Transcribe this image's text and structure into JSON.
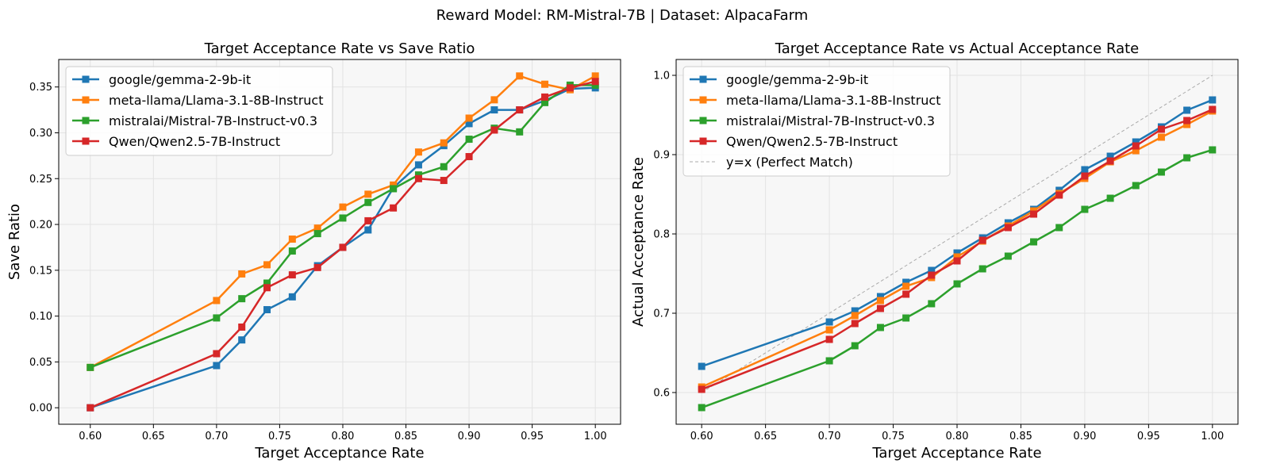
{
  "suptitle": "Reward Model: RM-Mistral-7B | Dataset: AlpacaFarm",
  "colors": {
    "google": "#1f77b4",
    "llama": "#ff7f0e",
    "mistral": "#2ca02c",
    "qwen": "#d62728",
    "diag": "#aaaaaa",
    "plot_bg": "#f7f7f7",
    "grid": "#e3e3e3"
  },
  "chart_data": [
    {
      "type": "line",
      "title": "Target Acceptance Rate vs Save Ratio",
      "xlabel": "Target Acceptance Rate",
      "ylabel": "Save Ratio",
      "xlim": [
        0.575,
        1.02
      ],
      "ylim": [
        -0.018,
        0.38
      ],
      "xticks": [
        0.6,
        0.65,
        0.7,
        0.75,
        0.8,
        0.85,
        0.9,
        0.95,
        1.0
      ],
      "xtick_labels": [
        "0.60",
        "0.65",
        "0.70",
        "0.75",
        "0.80",
        "0.85",
        "0.90",
        "0.95",
        "1.00"
      ],
      "yticks": [
        0.0,
        0.05,
        0.1,
        0.15,
        0.2,
        0.25,
        0.3,
        0.35
      ],
      "ytick_labels": [
        "0.00",
        "0.05",
        "0.10",
        "0.15",
        "0.20",
        "0.25",
        "0.30",
        "0.35"
      ],
      "legend_position": "upper-left",
      "grid": true,
      "x": [
        0.6,
        0.7,
        0.72,
        0.74,
        0.76,
        0.78,
        0.8,
        0.82,
        0.84,
        0.86,
        0.88,
        0.9,
        0.92,
        0.94,
        0.96,
        0.98,
        1.0
      ],
      "series": [
        {
          "name": "google/gemma-2-9b-it",
          "color_key": "google",
          "values": [
            0.0,
            0.046,
            0.074,
            0.107,
            0.121,
            0.155,
            0.175,
            0.194,
            0.24,
            0.265,
            0.286,
            0.31,
            0.325,
            0.325,
            0.335,
            0.348,
            0.349
          ]
        },
        {
          "name": "meta-llama/Llama-3.1-8B-Instruct",
          "color_key": "llama",
          "values": [
            0.044,
            0.117,
            0.146,
            0.156,
            0.184,
            0.196,
            0.219,
            0.233,
            0.243,
            0.279,
            0.289,
            0.316,
            0.336,
            0.362,
            0.353,
            0.347,
            0.362
          ]
        },
        {
          "name": "mistralai/Mistral-7B-Instruct-v0.3",
          "color_key": "mistral",
          "values": [
            0.044,
            0.098,
            0.119,
            0.136,
            0.171,
            0.19,
            0.207,
            0.224,
            0.239,
            0.254,
            0.263,
            0.293,
            0.305,
            0.301,
            0.333,
            0.352,
            0.352
          ]
        },
        {
          "name": "Qwen/Qwen2.5-7B-Instruct",
          "color_key": "qwen",
          "values": [
            0.0,
            0.059,
            0.088,
            0.131,
            0.145,
            0.153,
            0.175,
            0.204,
            0.218,
            0.25,
            0.248,
            0.274,
            0.303,
            0.325,
            0.339,
            0.349,
            0.356
          ]
        }
      ]
    },
    {
      "type": "line",
      "title": "Target Acceptance Rate vs Actual Acceptance Rate",
      "xlabel": "Target Acceptance Rate",
      "ylabel": "Actual Acceptance Rate",
      "xlim": [
        0.58,
        1.02
      ],
      "ylim": [
        0.56,
        1.02
      ],
      "xticks": [
        0.6,
        0.65,
        0.7,
        0.75,
        0.8,
        0.85,
        0.9,
        0.95,
        1.0
      ],
      "xtick_labels": [
        "0.60",
        "0.65",
        "0.70",
        "0.75",
        "0.80",
        "0.85",
        "0.90",
        "0.95",
        "1.00"
      ],
      "yticks": [
        0.6,
        0.7,
        0.8,
        0.9,
        1.0
      ],
      "ytick_labels": [
        "0.6",
        "0.7",
        "0.8",
        "0.9",
        "1.0"
      ],
      "legend_position": "upper-left",
      "grid": true,
      "x": [
        0.6,
        0.7,
        0.72,
        0.74,
        0.76,
        0.78,
        0.8,
        0.82,
        0.84,
        0.86,
        0.88,
        0.9,
        0.92,
        0.94,
        0.96,
        0.98,
        1.0
      ],
      "series": [
        {
          "name": "google/gemma-2-9b-it",
          "color_key": "google",
          "values": [
            0.633,
            0.689,
            0.703,
            0.721,
            0.739,
            0.754,
            0.776,
            0.795,
            0.814,
            0.831,
            0.855,
            0.881,
            0.898,
            0.916,
            0.935,
            0.956,
            0.969
          ]
        },
        {
          "name": "meta-llama/Llama-3.1-8B-Instruct",
          "color_key": "llama",
          "values": [
            0.607,
            0.679,
            0.697,
            0.716,
            0.734,
            0.745,
            0.771,
            0.791,
            0.81,
            0.829,
            0.851,
            0.87,
            0.891,
            0.905,
            0.922,
            0.938,
            0.955
          ]
        },
        {
          "name": "mistralai/Mistral-7B-Instruct-v0.3",
          "color_key": "mistral",
          "values": [
            0.581,
            0.64,
            0.659,
            0.682,
            0.694,
            0.712,
            0.737,
            0.756,
            0.772,
            0.79,
            0.808,
            0.831,
            0.845,
            0.861,
            0.878,
            0.896,
            0.906
          ]
        },
        {
          "name": "Qwen/Qwen2.5-7B-Instruct",
          "color_key": "qwen",
          "values": [
            0.604,
            0.667,
            0.687,
            0.706,
            0.724,
            0.748,
            0.766,
            0.792,
            0.808,
            0.825,
            0.849,
            0.873,
            0.892,
            0.911,
            0.932,
            0.943,
            0.957
          ]
        }
      ],
      "reference_line": {
        "name": "y=x (Perfect Match)",
        "color_key": "diag",
        "x": [
          0.6,
          1.0
        ],
        "values": [
          0.6,
          1.0
        ]
      }
    }
  ]
}
